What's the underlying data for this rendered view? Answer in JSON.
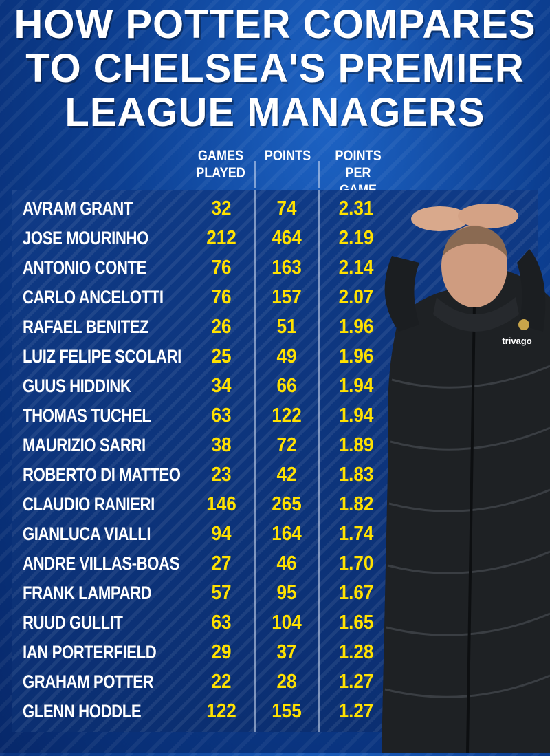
{
  "title": "HOW POTTER COMPARES TO CHELSEA'S PREMIER LEAGUE MANAGERS",
  "headers": {
    "games_played": [
      "GAMES",
      "PLAYED"
    ],
    "points": [
      "POINTS"
    ],
    "points_per_game": [
      "POINTS",
      "PER GAME"
    ]
  },
  "rows": [
    {
      "name": "AVRAM GRANT",
      "games": "32",
      "points": "74",
      "ppg": "2.31"
    },
    {
      "name": "JOSE MOURINHO",
      "games": "212",
      "points": "464",
      "ppg": "2.19"
    },
    {
      "name": "ANTONIO CONTE",
      "games": "76",
      "points": "163",
      "ppg": "2.14"
    },
    {
      "name": "CARLO ANCELOTTI",
      "games": "76",
      "points": "157",
      "ppg": "2.07"
    },
    {
      "name": "RAFAEL BENITEZ",
      "games": "26",
      "points": "51",
      "ppg": "1.96"
    },
    {
      "name": "LUIZ FELIPE SCOLARI",
      "games": "25",
      "points": "49",
      "ppg": "1.96"
    },
    {
      "name": "GUUS HIDDINK",
      "games": "34",
      "points": "66",
      "ppg": "1.94"
    },
    {
      "name": "THOMAS TUCHEL",
      "games": "63",
      "points": "122",
      "ppg": "1.94"
    },
    {
      "name": "MAURIZIO SARRI",
      "games": "38",
      "points": "72",
      "ppg": "1.89"
    },
    {
      "name": "ROBERTO DI MATTEO",
      "games": "23",
      "points": "42",
      "ppg": "1.83"
    },
    {
      "name": "CLAUDIO RANIERI",
      "games": "146",
      "points": "265",
      "ppg": "1.82"
    },
    {
      "name": "GIANLUCA VIALLI",
      "games": "94",
      "points": "164",
      "ppg": "1.74"
    },
    {
      "name": "ANDRE VILLAS-BOAS",
      "games": "27",
      "points": "46",
      "ppg": "1.70"
    },
    {
      "name": "FRANK LAMPARD",
      "games": "57",
      "points": "95",
      "ppg": "1.67"
    },
    {
      "name": "RUUD GULLIT",
      "games": "63",
      "points": "104",
      "ppg": "1.65"
    },
    {
      "name": "IAN PORTERFIELD",
      "games": "29",
      "points": "37",
      "ppg": "1.28"
    },
    {
      "name": "GRAHAM POTTER",
      "games": "22",
      "points": "28",
      "ppg": "1.27"
    },
    {
      "name": "GLENN HODDLE",
      "games": "122",
      "points": "155",
      "ppg": "1.27"
    }
  ],
  "photo": {
    "subject": "manager-photo",
    "sponsor": "trivago"
  },
  "colors": {
    "background": "#0c3f92",
    "table_bg": "#0b2f72",
    "name_text": "#ffffff",
    "number_text": "#ffe100"
  }
}
